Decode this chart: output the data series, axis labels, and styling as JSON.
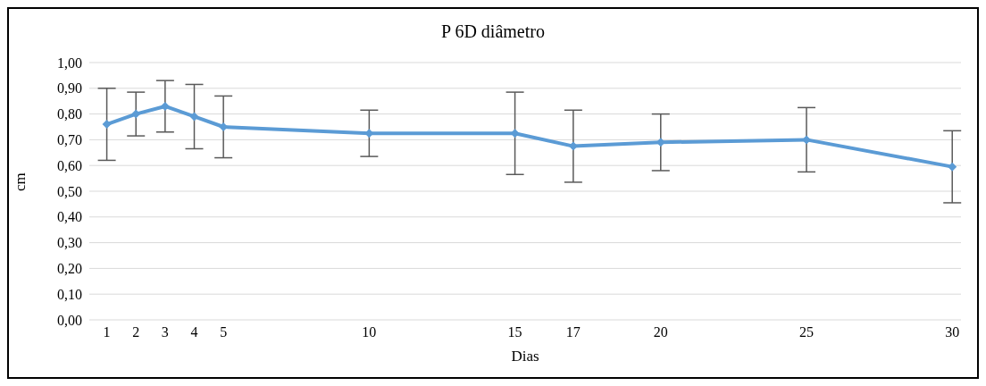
{
  "chart_data": {
    "type": "line",
    "title": "P 6D diâmetro",
    "xlabel": "Dias",
    "ylabel": "cm",
    "x": [
      1,
      2,
      3,
      4,
      5,
      10,
      15,
      17,
      20,
      25,
      30
    ],
    "series": [
      {
        "color": "#5b9bd5",
        "values": [
          0.76,
          0.8,
          0.83,
          0.79,
          0.75,
          0.725,
          0.725,
          0.675,
          0.69,
          0.7,
          0.595
        ],
        "errors": [
          0.14,
          0.085,
          0.1,
          0.125,
          0.12,
          0.09,
          0.16,
          0.14,
          0.11,
          0.125,
          0.14
        ]
      }
    ],
    "xlim": [
      0.4,
      30.3
    ],
    "xticks": [
      1,
      2,
      3,
      4,
      5,
      10,
      15,
      17,
      20,
      25,
      30
    ],
    "ylim": [
      0,
      1
    ],
    "yticks": [
      {
        "value": 0,
        "label": "0,00"
      },
      {
        "value": 0.1,
        "label": "0,10"
      },
      {
        "value": 0.2,
        "label": "0,20"
      },
      {
        "value": 0.3,
        "label": "0,30"
      },
      {
        "value": 0.4,
        "label": "0,40"
      },
      {
        "value": 0.5,
        "label": "0,50"
      },
      {
        "value": 0.6,
        "label": "0,60"
      },
      {
        "value": 0.7,
        "label": "0,70"
      },
      {
        "value": 0.8,
        "label": "0,80"
      },
      {
        "value": 0.9,
        "label": "0,90"
      },
      {
        "value": 1,
        "label": "1,00"
      }
    ],
    "grid": "y",
    "legend": false,
    "marker": "diamond",
    "line_style": "solid"
  }
}
